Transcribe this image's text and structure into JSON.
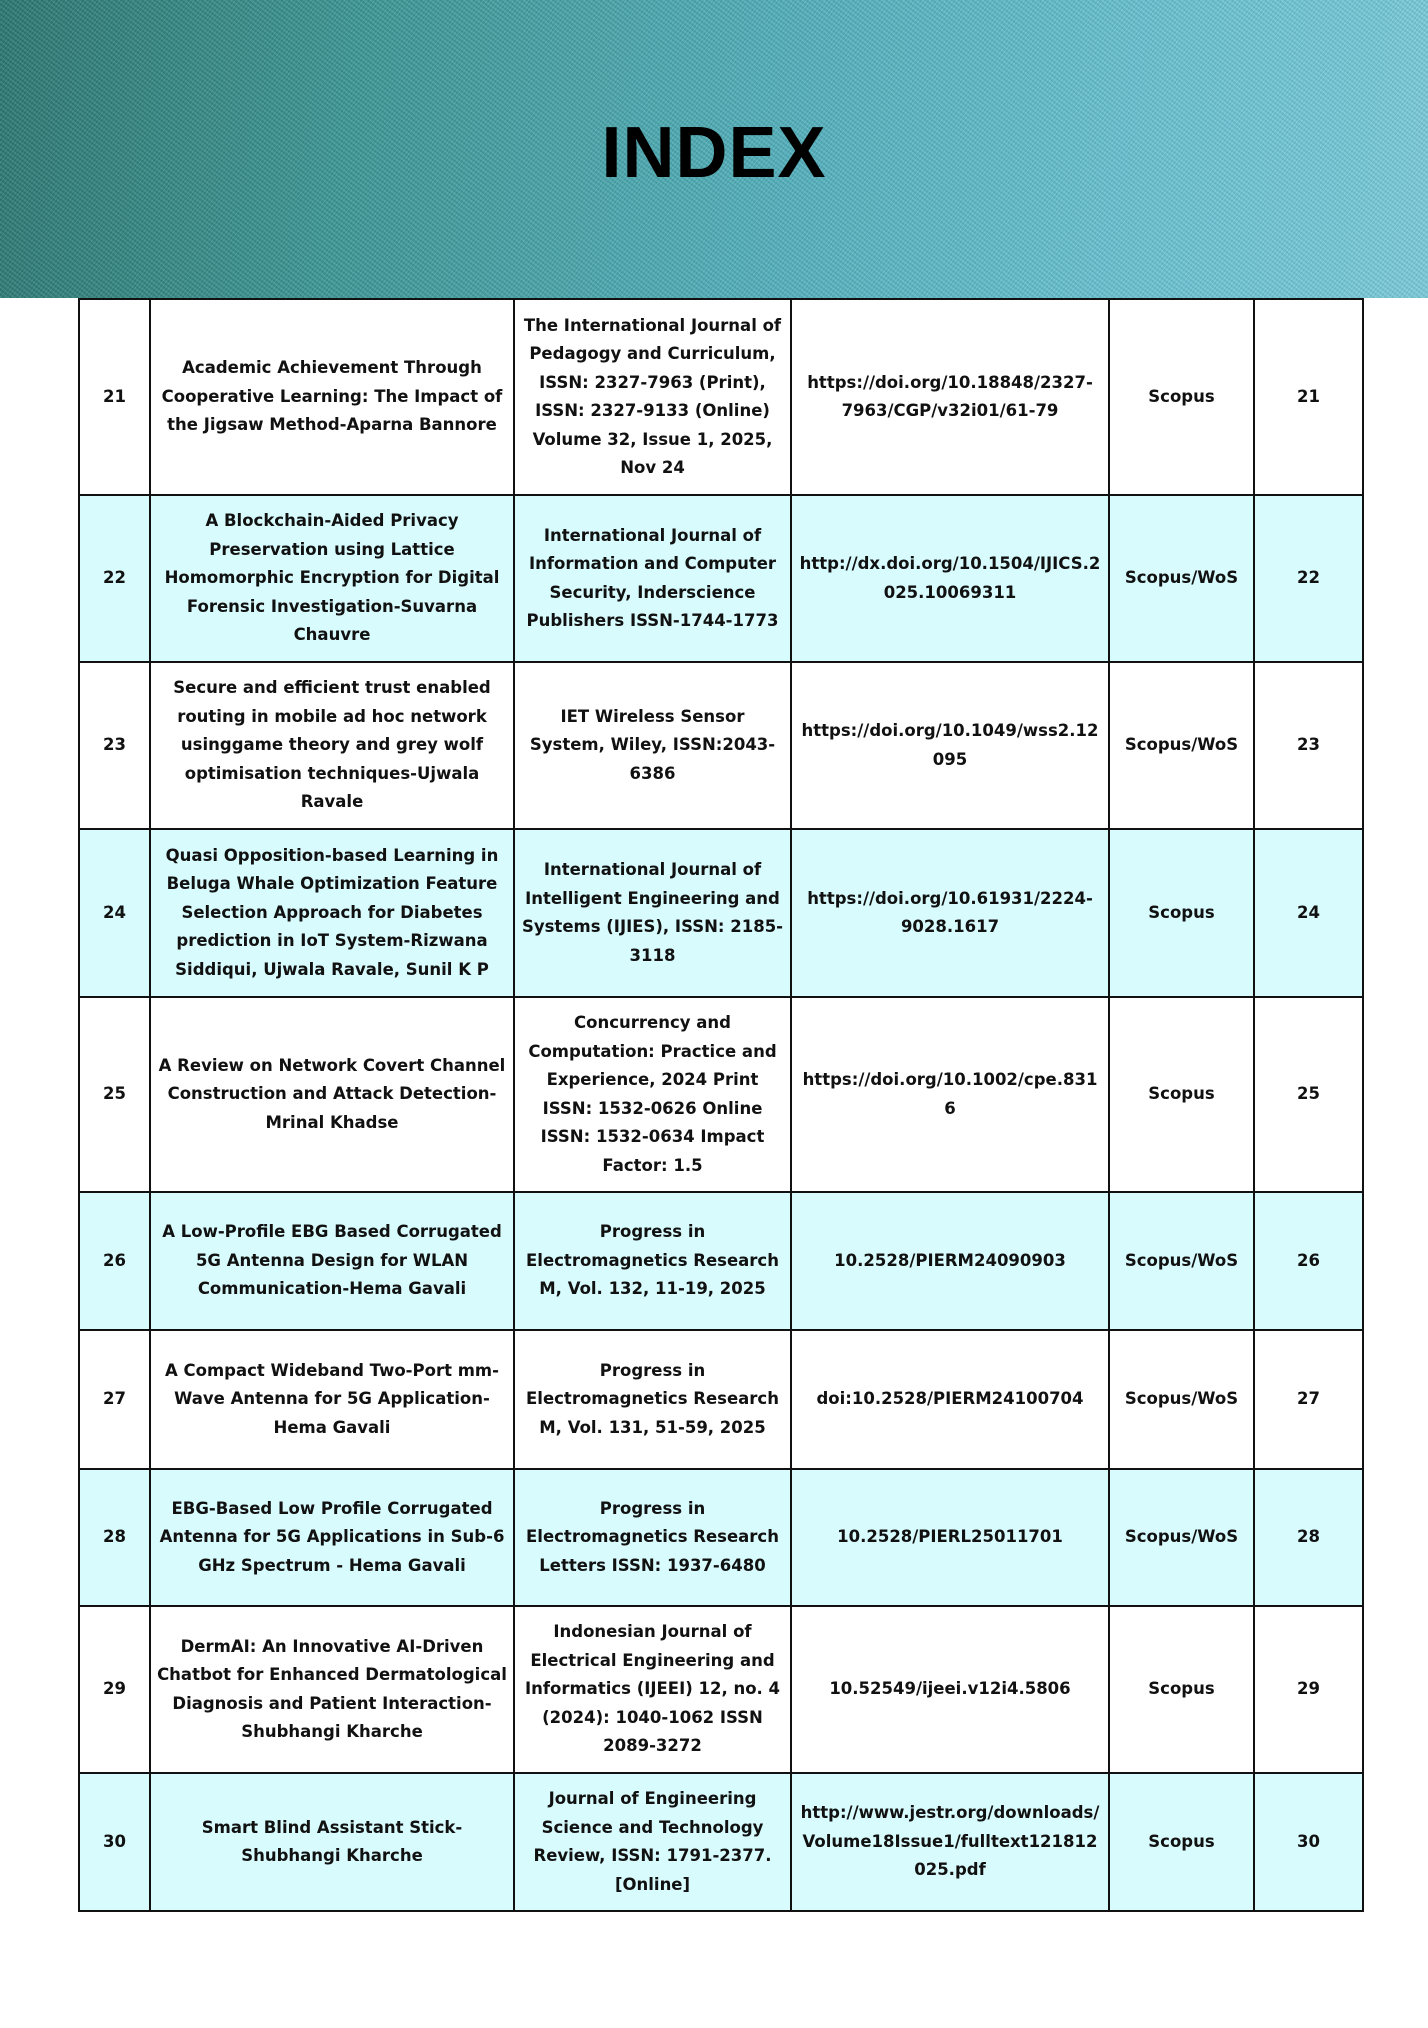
{
  "header": {
    "title": "INDEX"
  },
  "colors": {
    "alt_row": "#d8fbfd",
    "banner_left": "#2e7a74",
    "banner_right": "#7dcfdf"
  },
  "rows": [
    {
      "no": "21",
      "title": "Academic Achievement Through Cooperative Learning: The Impact of the Jigsaw Method-Aparna Bannore",
      "journal": "The International Journal of Pedagogy and Curriculum, ISSN: 2327-7963 (Print), ISSN: 2327-9133 (Online) Volume 32, Issue 1, 2025, Nov 24",
      "doi": "https://doi.org/10.18848/2327-7963/CGP/v32i01/61-79",
      "index": "Scopus",
      "page": "21"
    },
    {
      "no": "22",
      "title": "A Blockchain-Aided Privacy Preservation using Lattice Homomorphic Encryption for Digital Forensic Investigation-Suvarna Chauvre",
      "journal": "International Journal of Information and Computer Security, Inderscience Publishers ISSN-1744-1773",
      "doi": "http://dx.doi.org/10.1504/IJICS.2025.10069311",
      "index": "Scopus/WoS",
      "page": "22"
    },
    {
      "no": "23",
      "title": "Secure and efficient trust enabled routing in mobile ad hoc network usinggame theory and grey wolf optimisation techniques-Ujwala Ravale",
      "journal": "IET Wireless Sensor System, Wiley, ISSN:2043-6386",
      "doi": "https://doi.org/10.1049/wss2.12095",
      "index": "Scopus/WoS",
      "page": "23"
    },
    {
      "no": "24",
      "title": "Quasi Opposition-based Learning in Beluga Whale Optimization Feature Selection Approach for Diabetes prediction in IoT System-Rizwana Siddiqui, Ujwala Ravale, Sunil K P",
      "journal": "International Journal of Intelligent Engineering and Systems (IJIES), ISSN: 2185-3118",
      "doi": "https://doi.org/10.61931/2224-9028.1617",
      "index": "Scopus",
      "page": "24"
    },
    {
      "no": "25",
      "title": "A Review on Network Covert Channel Construction and Attack Detection-Mrinal Khadse",
      "journal": "Concurrency and Computation: Practice and Experience, 2024 Print ISSN: 1532-0626 Online ISSN: 1532-0634 Impact Factor: 1.5",
      "doi": "https://doi.org/10.1002/cpe.8316",
      "index": "Scopus",
      "page": "25"
    },
    {
      "no": "26",
      "title": "A Low-Profile EBG Based Corrugated 5G Antenna Design for WLAN Communication-Hema Gavali",
      "journal": "Progress in Electromagnetics Research M, Vol. 132, 11-19, 2025",
      "doi": "10.2528/PIERM24090903",
      "index": "Scopus/WoS",
      "page": "26"
    },
    {
      "no": "27",
      "title": "A Compact Wideband Two-Port mm-Wave Antenna for 5G Application-Hema Gavali",
      "journal": "Progress in Electromagnetics Research M, Vol. 131, 51-59, 2025",
      "doi": "doi:10.2528/PIERM24100704",
      "index": "Scopus/WoS",
      "page": "27"
    },
    {
      "no": "28",
      "title": "EBG-Based Low Profile Corrugated Antenna for 5G Applications in Sub-6 GHz Spectrum - Hema Gavali",
      "journal": "Progress in Electromagnetics Research Letters ISSN: 1937-6480",
      "doi": "10.2528/PIERL25011701",
      "index": "Scopus/WoS",
      "page": "28"
    },
    {
      "no": "29",
      "title": "DermAI: An Innovative AI-Driven Chatbot for Enhanced Dermatological Diagnosis and Patient Interaction-Shubhangi Kharche",
      "journal": "Indonesian Journal of Electrical Engineering and Informatics (IJEEI) 12, no. 4 (2024): 1040-1062 ISSN 2089-3272",
      "doi": "10.52549/ijeei.v12i4.5806",
      "index": "Scopus",
      "page": "29"
    },
    {
      "no": "30",
      "title": "Smart Blind Assistant Stick-Shubhangi Kharche",
      "journal": "Journal of Engineering Science and Technology Review, ISSN: 1791-2377. [Online]",
      "doi": "http://www.jestr.org/downloads/Volume18Issue1/fulltext121812025.pdf",
      "index": "Scopus",
      "page": "30"
    }
  ]
}
